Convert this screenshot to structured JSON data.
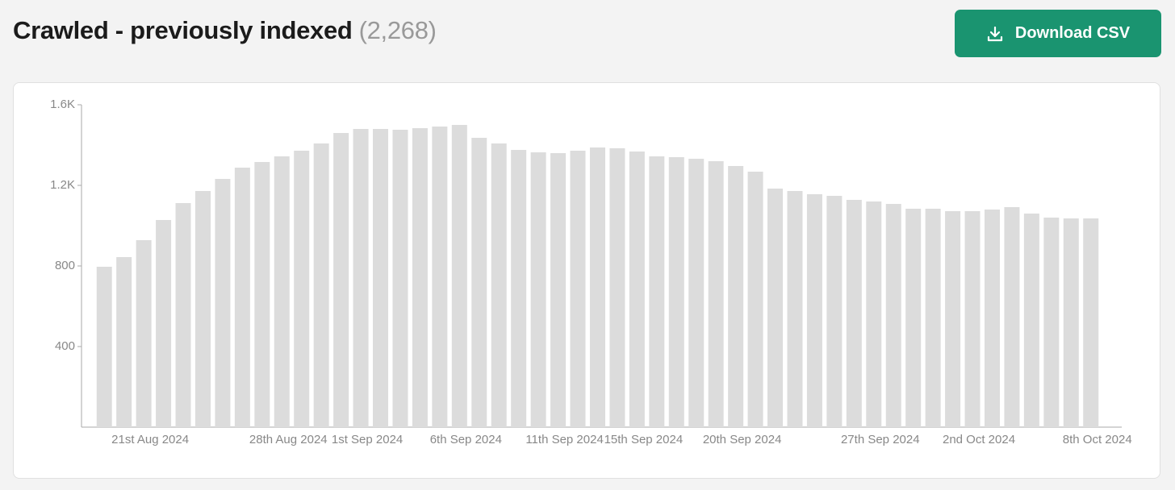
{
  "header": {
    "title": "Crawled - previously indexed",
    "count": "(2,268)",
    "button": "Download CSV"
  },
  "chart_data": {
    "type": "bar",
    "categories": [
      null,
      null,
      "21st Aug 2024",
      null,
      null,
      null,
      null,
      null,
      null,
      "28th Aug 2024",
      null,
      null,
      null,
      "1st Sep 2024",
      null,
      null,
      null,
      null,
      "6th Sep 2024",
      null,
      null,
      null,
      null,
      "11th Sep 2024",
      null,
      null,
      null,
      "15th Sep 2024",
      null,
      null,
      null,
      null,
      "20th Sep 2024",
      null,
      null,
      null,
      null,
      null,
      null,
      "27th Sep 2024",
      null,
      null,
      null,
      null,
      "2nd Oct 2024",
      null,
      null,
      null,
      null,
      null,
      "8th Oct 2024"
    ],
    "values": [
      796,
      844,
      928,
      1028,
      1112,
      1172,
      1232,
      1288,
      1316,
      1344,
      1372,
      1408,
      1460,
      1480,
      1480,
      1476,
      1484,
      1492,
      1500,
      1436,
      1408,
      1376,
      1364,
      1360,
      1372,
      1388,
      1384,
      1368,
      1344,
      1340,
      1332,
      1320,
      1296,
      1268,
      1184,
      1172,
      1156,
      1148,
      1128,
      1120,
      1108,
      1084,
      1084,
      1072,
      1072,
      1080,
      1092,
      1060,
      1040,
      1036,
      1036
    ],
    "color": "#dcdcdc",
    "ylim": [
      0,
      1600
    ],
    "yticks": [
      400,
      800,
      {
        "value": 1200,
        "label": "1.2K"
      },
      {
        "value": 1600,
        "label": "1.6K"
      }
    ]
  }
}
